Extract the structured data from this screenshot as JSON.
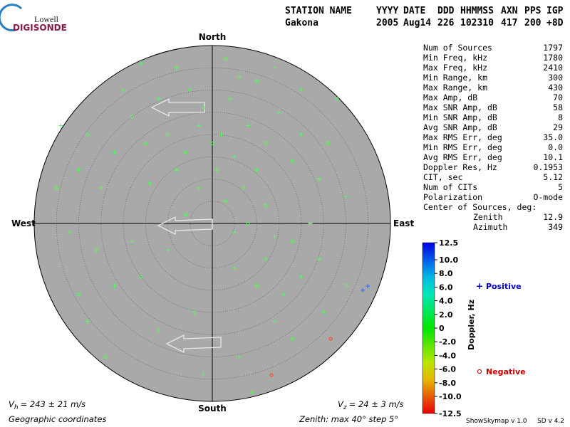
{
  "logo": {
    "top": "Lowell",
    "bottom": "DIGISONDE"
  },
  "header": {
    "labels": [
      "STATION NAME",
      "YYYY",
      "DATE",
      "DDD",
      "HHMMSS",
      "AXN",
      "PPS",
      "IGP"
    ],
    "values": [
      "Gakona",
      "2005",
      "Aug14",
      "226",
      "102310",
      "417",
      "200",
      "+8D"
    ]
  },
  "compass": {
    "north": "North",
    "south": "South",
    "east": "East",
    "west": "West"
  },
  "zenith_max": 40,
  "zenith_step": 5,
  "stats": {
    "rows": [
      [
        "Num of Sources",
        "1797"
      ],
      [
        "Min Freq, kHz",
        "1780"
      ],
      [
        "Max Freq, kHz",
        "2410"
      ],
      [
        "Min Range, km",
        "300"
      ],
      [
        "Max Range, km",
        "430"
      ],
      [
        "Max Amp, dB",
        "70"
      ],
      [
        "Max SNR Amp, dB",
        "58"
      ],
      [
        "Min SNR Amp, dB",
        "8"
      ],
      [
        "Avg SNR Amp, dB",
        "29"
      ],
      [
        "Max RMS Err, deg",
        "35.0"
      ],
      [
        "Min RMS Err, deg",
        "0.0"
      ],
      [
        "Avg RMS Err, deg",
        "10.1"
      ],
      [
        "Doppler Res, Hz",
        "0.1953"
      ],
      [
        "CIT, sec",
        "5.12"
      ],
      [
        "Num of CITs",
        "5"
      ],
      [
        "Polarization",
        "O-mode"
      ]
    ],
    "center_title": "Center of Sources, deg:",
    "center_rows": [
      [
        "Zenith",
        "12.9"
      ],
      [
        "Azimuth",
        "349"
      ]
    ]
  },
  "colorbar": {
    "title": "Doppler, Hz",
    "range": [
      -12.5,
      12.5
    ],
    "ticks": [
      12.5,
      {
        "value": 10,
        "label": "10.0"
      },
      {
        "value": 8,
        "label": "8.0"
      },
      {
        "value": 6,
        "label": "6.0"
      },
      {
        "value": 4,
        "label": "4.0"
      },
      {
        "value": 2,
        "label": "2.0"
      },
      0,
      {
        "value": -2,
        "label": "-2.0"
      },
      {
        "value": -4,
        "label": "-4.0"
      },
      {
        "value": -6,
        "label": "-6.0"
      },
      {
        "value": -8,
        "label": "-8.0"
      },
      {
        "value": -10,
        "label": "-10.0"
      },
      -12.5
    ]
  },
  "legend": {
    "positive": "Positive",
    "negative": "Negative"
  },
  "footer": {
    "vh": {
      "symbol": "V",
      "sub": "h",
      "text": "= 243 ± 21 m/s"
    },
    "vz": {
      "symbol": "V",
      "sub": "z",
      "text": "= 24 ± 3 m/s"
    },
    "coordinates": "Geographic coordinates",
    "zenith": "Zenith: max 40°  step 5°",
    "program": "ShowSkymap v 1.0",
    "sd": "SD v 4.2"
  },
  "sources": [
    [
      -3,
      22,
      0.3
    ],
    [
      0,
      18,
      -0.2
    ],
    [
      2,
      20,
      0.4
    ],
    [
      -6,
      16,
      -0.3
    ],
    [
      5,
      15,
      0.2
    ],
    [
      -10,
      20,
      -0.4
    ],
    [
      8,
      22,
      0.3
    ],
    [
      -2,
      26,
      -0.1
    ],
    [
      4,
      28,
      0.2
    ],
    [
      -15,
      18,
      0.1
    ],
    [
      12,
      18,
      -0.2
    ],
    [
      -8,
      12,
      0.3
    ],
    [
      1,
      12,
      -0.3
    ],
    [
      10,
      12,
      0.2
    ],
    [
      -18,
      24,
      -0.2
    ],
    [
      15,
      25,
      0.3
    ],
    [
      -5,
      30,
      0.1
    ],
    [
      6,
      33,
      -0.2
    ],
    [
      -12,
      28,
      0.4
    ],
    [
      18,
      14,
      -0.1
    ],
    [
      -22,
      16,
      0.2
    ],
    [
      -25,
      8,
      -0.3
    ],
    [
      20,
      20,
      0.3
    ],
    [
      -3,
      8,
      0.2
    ],
    [
      7,
      8,
      -0.2
    ],
    [
      -14,
      9,
      0.1
    ],
    [
      24,
      10,
      0.2
    ],
    [
      -28,
      20,
      -0.2
    ],
    [
      -20,
      30,
      0.1
    ],
    [
      10,
      32,
      -0.1
    ],
    [
      -8,
      35,
      0.2
    ],
    [
      3,
      37,
      -0.3
    ],
    [
      -30,
      12,
      0.3
    ],
    [
      26,
      18,
      -0.2
    ],
    [
      30,
      6,
      0.1
    ],
    [
      -35,
      8,
      -0.1
    ],
    [
      -32,
      -2,
      0.2
    ],
    [
      -26,
      -6,
      -0.2
    ],
    [
      -18,
      -4,
      0.1
    ],
    [
      -10,
      -6,
      0.3
    ],
    [
      -6,
      2,
      -0.2
    ],
    [
      5,
      -2,
      0.2
    ],
    [
      8,
      0,
      -0.1
    ],
    [
      14,
      -3,
      0.3
    ],
    [
      18,
      -4,
      -0.1
    ],
    [
      22,
      0,
      0.2
    ],
    [
      12,
      4,
      -0.3
    ],
    [
      3,
      5,
      0.1
    ],
    [
      -16,
      -12,
      -0.2
    ],
    [
      -22,
      -14,
      0.1
    ],
    [
      -30,
      -16,
      -0.1
    ],
    [
      -28,
      -22,
      0.2
    ],
    [
      5,
      -10,
      0.3
    ],
    [
      10,
      -14,
      -0.2
    ],
    [
      16,
      -16,
      0.3
    ],
    [
      20,
      -12,
      0.1
    ],
    [
      24,
      -8,
      -0.2
    ],
    [
      14,
      -22,
      0.2
    ],
    [
      18,
      -26,
      -0.1
    ],
    [
      6,
      -30,
      0.2
    ],
    [
      -2,
      -34,
      0.3
    ],
    [
      9,
      -38,
      -0.2
    ],
    [
      25,
      -20,
      0.1
    ],
    [
      30,
      -14,
      -0.3
    ],
    [
      12,
      -8,
      0.2
    ],
    [
      -4,
      -20,
      -0.1
    ],
    [
      -12,
      -24,
      0.2
    ],
    [
      -24,
      -30,
      -0.2
    ],
    [
      20,
      30,
      0.1
    ],
    [
      -34,
      22,
      0.2
    ],
    [
      28,
      28,
      -0.1
    ],
    [
      -16,
      36,
      0.3
    ],
    [
      14,
      35,
      0.1
    ],
    [
      33.8,
      -15,
      10.5
    ],
    [
      34.9,
      -14.1,
      10.5
    ],
    [
      26.6,
      -25.9,
      -11.5
    ],
    [
      13.3,
      -34.1,
      -11.5
    ]
  ]
}
